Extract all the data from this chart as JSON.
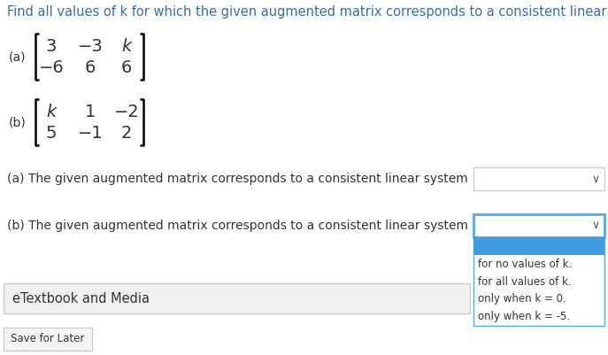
{
  "title": "Find all values of k for which the given augmented matrix corresponds to a consistent linear syster",
  "title_color": "#3a6ea5",
  "bg_color": "#ffffff",
  "text_color": "#333333",
  "matrix_color": "#333333",
  "label_a": "(a)",
  "label_b": "(b)",
  "question_a": "(a) The given augmented matrix corresponds to a consistent linear system",
  "question_b": "(b) The given augmented matrix corresponds to a consistent linear system",
  "dropdown_options": [
    "for no values of k.",
    "for all values of k.",
    "only when k = 0.",
    "only when k = -5."
  ],
  "etextbook_label": "eTextbook and Media",
  "dropdown_border_color": "#cccccc",
  "dropdown_b_border_color": "#4aabf0",
  "dropdown_highlight_color": "#3d9de0",
  "save_label": "Save for Later"
}
